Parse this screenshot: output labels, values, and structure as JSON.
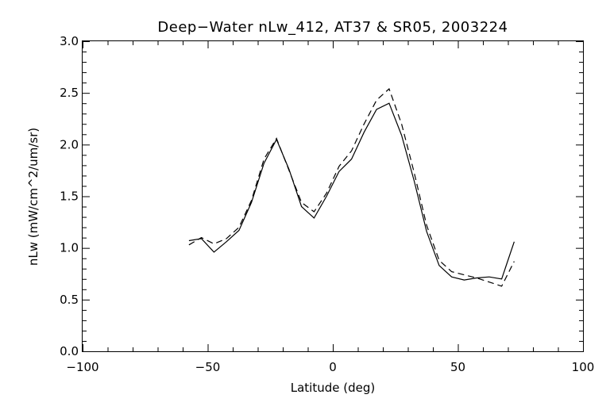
{
  "chart_data": {
    "type": "line",
    "title": "Deep−Water nLw_412, AT37 & SR05, 2003224",
    "xlabel": "Latitude (deg)",
    "ylabel": "nLw (mW/cm^2/um/sr)",
    "xlim": [
      -100,
      100
    ],
    "ylim": [
      0.0,
      3.0
    ],
    "xticks": [
      -100,
      -50,
      0,
      50,
      100
    ],
    "xtick_labels": [
      "−100",
      "−50",
      "0",
      "50",
      "100"
    ],
    "yticks": [
      0.0,
      0.5,
      1.0,
      1.5,
      2.0,
      2.5,
      3.0
    ],
    "ytick_labels": [
      "0.0",
      "0.5",
      "1.0",
      "1.5",
      "2.0",
      "2.5",
      "3.0"
    ],
    "grid": false,
    "legend": false,
    "series": [
      {
        "style": "solid",
        "color": "#000000",
        "x": [
          -57.5,
          -52.5,
          -47.5,
          -42.5,
          -37.5,
          -32.5,
          -27.5,
          -22.5,
          -17.5,
          -12.5,
          -7.5,
          -2.5,
          2.5,
          7.5,
          12.5,
          17.5,
          22.5,
          27.5,
          32.5,
          37.5,
          42.5,
          47.5,
          52.5,
          57.5,
          62.5,
          67.5,
          72.5
        ],
        "y": [
          1.07,
          1.09,
          0.96,
          1.06,
          1.17,
          1.44,
          1.82,
          2.05,
          1.76,
          1.4,
          1.29,
          1.5,
          1.74,
          1.86,
          2.12,
          2.34,
          2.4,
          2.09,
          1.65,
          1.16,
          0.83,
          0.72,
          0.69,
          0.71,
          0.72,
          0.7,
          1.06
        ]
      },
      {
        "style": "dashed",
        "color": "#000000",
        "x": [
          -57.5,
          -52.5,
          -47.5,
          -42.5,
          -37.5,
          -32.5,
          -27.5,
          -22.5,
          -17.5,
          -12.5,
          -7.5,
          -2.5,
          2.5,
          7.5,
          12.5,
          17.5,
          22.5,
          27.5,
          32.5,
          37.5,
          42.5,
          47.5,
          52.5,
          57.5,
          62.5,
          67.5,
          72.5
        ],
        "y": [
          1.03,
          1.1,
          1.04,
          1.09,
          1.2,
          1.46,
          1.86,
          2.06,
          1.75,
          1.44,
          1.35,
          1.53,
          1.79,
          1.94,
          2.2,
          2.43,
          2.54,
          2.2,
          1.73,
          1.22,
          0.88,
          0.77,
          0.74,
          0.71,
          0.67,
          0.63,
          0.87
        ]
      }
    ]
  }
}
